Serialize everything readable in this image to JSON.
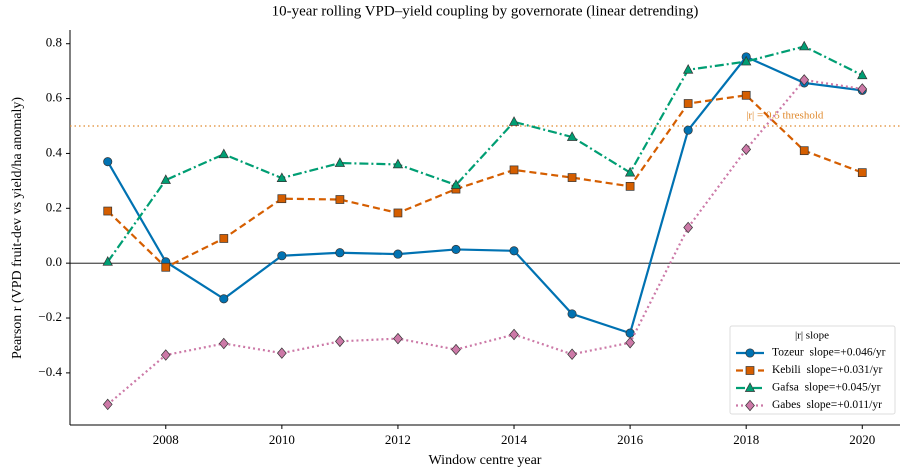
{
  "chart_data": {
    "type": "line",
    "title": "10-year rolling VPD–yield coupling by governorate (linear detrending)",
    "xlabel": "Window centre year",
    "ylabel": "Pearson r (VPD fruit-dev vs yield/ha anomaly)",
    "x": [
      2007,
      2008,
      2009,
      2010,
      2011,
      2012,
      2013,
      2014,
      2015,
      2016,
      2017,
      2018,
      2019,
      2020
    ],
    "xlim": [
      2006.35,
      2020.65
    ],
    "xticks": [
      2008,
      2010,
      2012,
      2014,
      2016,
      2018,
      2020
    ],
    "ylim": [
      -0.59,
      0.85
    ],
    "yticks": [
      {
        "value": -0.4,
        "label": "−0.4"
      },
      {
        "value": -0.2,
        "label": "−0.2"
      },
      {
        "value": 0,
        "label": "0.0"
      },
      0.2,
      0.4,
      0.6,
      0.8
    ],
    "grid": false,
    "legend_title": "|r| slope",
    "legend_position": "lower right",
    "threshold": {
      "value": 0.5,
      "label": "|r| = 0.5 threshold",
      "color": "#e08a2e"
    },
    "series": [
      {
        "name": "Tozeur  slope=+0.046/yr",
        "color": "#0072b2",
        "marker": "circle",
        "dash": "solid",
        "values": [
          0.37,
          0.005,
          -0.13,
          0.027,
          0.038,
          0.033,
          0.05,
          0.045,
          -0.185,
          -0.255,
          0.485,
          0.752,
          0.657,
          0.63
        ]
      },
      {
        "name": "Kebili  slope=+0.031/yr",
        "color": "#d55e00",
        "marker": "square",
        "dash": "dashed",
        "values": [
          0.19,
          -0.015,
          0.09,
          0.235,
          0.232,
          0.183,
          0.27,
          0.34,
          0.312,
          0.28,
          0.582,
          0.612,
          0.41,
          0.33
        ]
      },
      {
        "name": "Gafsa  slope=+0.045/yr",
        "color": "#009e73",
        "marker": "triangle",
        "dash": "dashdot",
        "values": [
          0.005,
          0.303,
          0.397,
          0.31,
          0.365,
          0.36,
          0.285,
          0.515,
          0.46,
          0.33,
          0.705,
          0.735,
          0.79,
          0.685
        ]
      },
      {
        "name": "Gabes  slope=+0.011/yr",
        "color": "#cc79a7",
        "marker": "diamond",
        "dash": "dotted",
        "values": [
          -0.515,
          -0.335,
          -0.293,
          -0.328,
          -0.285,
          -0.275,
          -0.315,
          -0.26,
          -0.332,
          -0.29,
          0.13,
          0.415,
          0.668,
          0.635
        ]
      }
    ]
  }
}
